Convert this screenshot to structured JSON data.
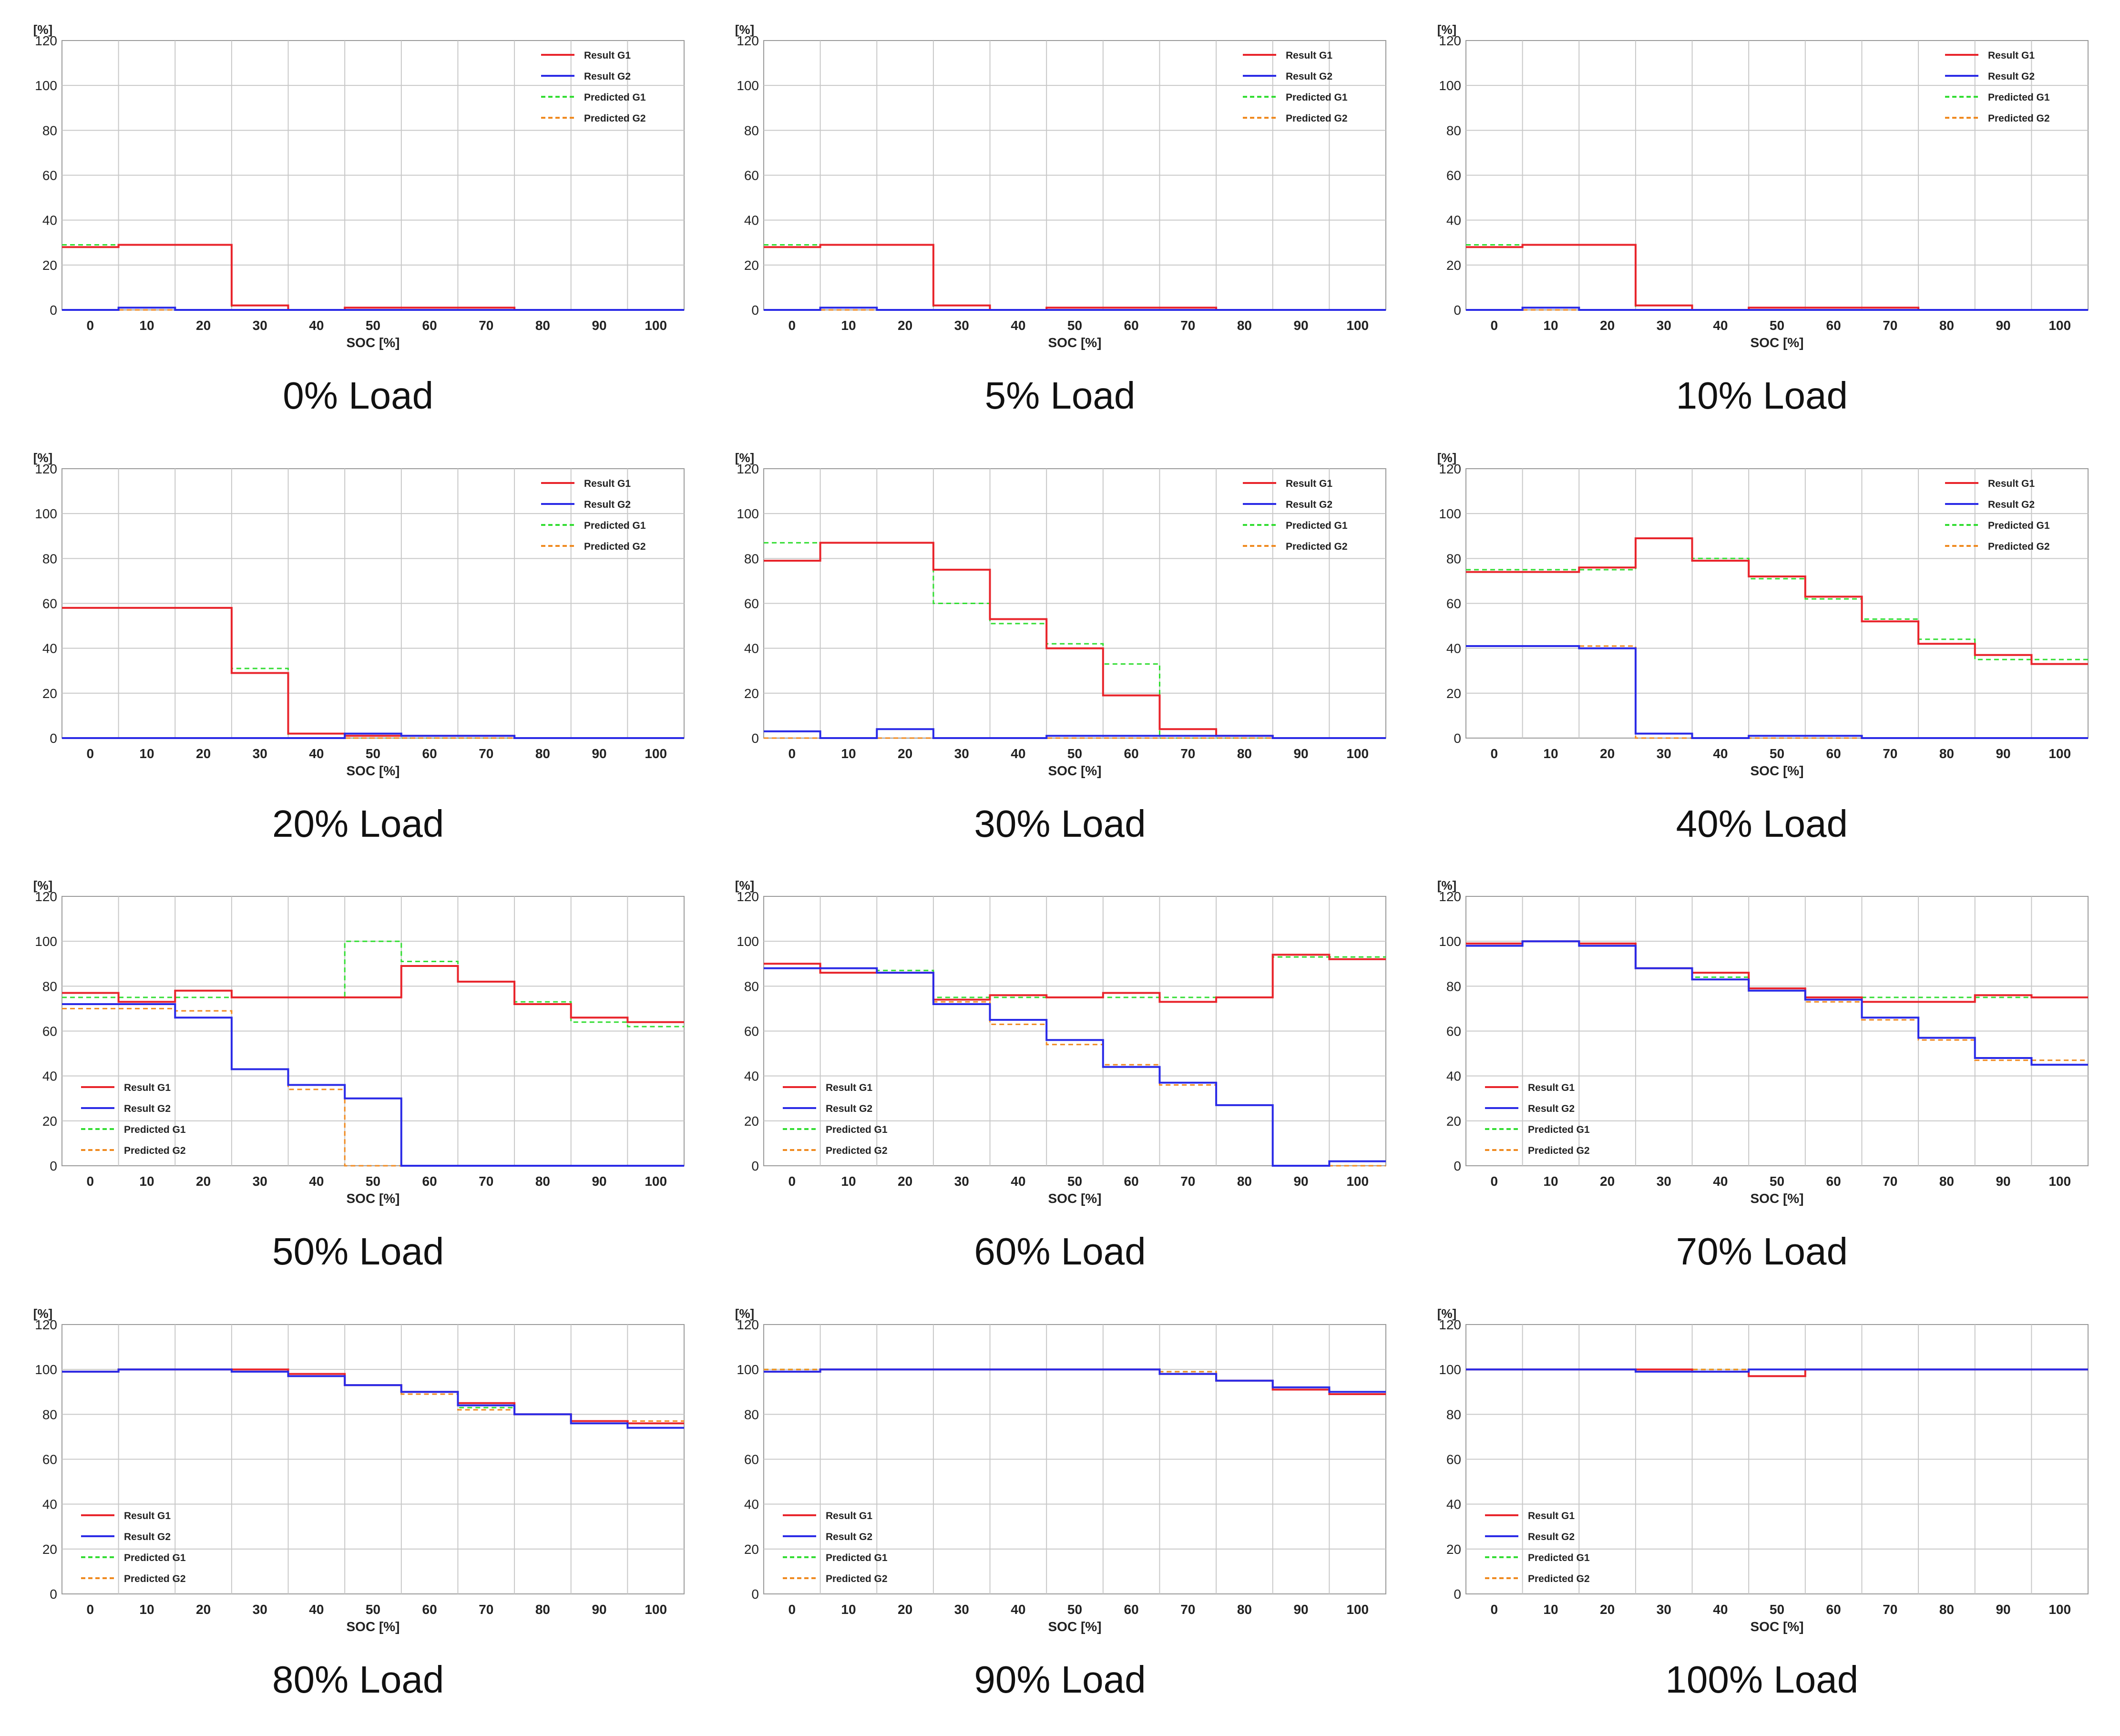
{
  "chart_data": [
    {
      "type": "line",
      "title": "0% Load",
      "xlabel": "SOC [%]",
      "ylabel": "[%]",
      "xlim": [
        -5,
        105
      ],
      "ylim": [
        0,
        120
      ],
      "xticks": [
        0,
        10,
        20,
        30,
        40,
        50,
        60,
        70,
        80,
        90,
        100
      ],
      "yticks": [
        0,
        20,
        40,
        60,
        80,
        100,
        120
      ],
      "legend_position": "top-right",
      "series": [
        {
          "name": "Result G1",
          "values": [
            28,
            29,
            29,
            2,
            0,
            1,
            1,
            1,
            0,
            0,
            0
          ]
        },
        {
          "name": "Result G2",
          "values": [
            0,
            1,
            0,
            0,
            0,
            0,
            0,
            0,
            0,
            0,
            0
          ]
        },
        {
          "name": "Predicted G1",
          "values": [
            29,
            29,
            29,
            0,
            0,
            0,
            0,
            0,
            0,
            0,
            0
          ]
        },
        {
          "name": "Predicted G2",
          "values": [
            0,
            0,
            0,
            0,
            0,
            0,
            0,
            0,
            0,
            0,
            0
          ]
        }
      ]
    },
    {
      "type": "line",
      "title": "5% Load",
      "xlabel": "SOC [%]",
      "ylabel": "[%]",
      "xlim": [
        -5,
        105
      ],
      "ylim": [
        0,
        120
      ],
      "xticks": [
        0,
        10,
        20,
        30,
        40,
        50,
        60,
        70,
        80,
        90,
        100
      ],
      "yticks": [
        0,
        20,
        40,
        60,
        80,
        100,
        120
      ],
      "legend_position": "top-right",
      "series": [
        {
          "name": "Result G1",
          "values": [
            28,
            29,
            29,
            2,
            0,
            1,
            1,
            1,
            0,
            0,
            0
          ]
        },
        {
          "name": "Result G2",
          "values": [
            0,
            1,
            0,
            0,
            0,
            0,
            0,
            0,
            0,
            0,
            0
          ]
        },
        {
          "name": "Predicted G1",
          "values": [
            29,
            29,
            29,
            0,
            0,
            0,
            0,
            0,
            0,
            0,
            0
          ]
        },
        {
          "name": "Predicted G2",
          "values": [
            0,
            0,
            0,
            0,
            0,
            0,
            0,
            0,
            0,
            0,
            0
          ]
        }
      ]
    },
    {
      "type": "line",
      "title": "10% Load",
      "xlabel": "SOC [%]",
      "ylabel": "[%]",
      "xlim": [
        -5,
        105
      ],
      "ylim": [
        0,
        120
      ],
      "xticks": [
        0,
        10,
        20,
        30,
        40,
        50,
        60,
        70,
        80,
        90,
        100
      ],
      "yticks": [
        0,
        20,
        40,
        60,
        80,
        100,
        120
      ],
      "legend_position": "top-right",
      "series": [
        {
          "name": "Result G1",
          "values": [
            28,
            29,
            29,
            2,
            0,
            1,
            1,
            1,
            0,
            0,
            0
          ]
        },
        {
          "name": "Result G2",
          "values": [
            0,
            1,
            0,
            0,
            0,
            0,
            0,
            0,
            0,
            0,
            0
          ]
        },
        {
          "name": "Predicted G1",
          "values": [
            29,
            29,
            29,
            0,
            0,
            0,
            0,
            0,
            0,
            0,
            0
          ]
        },
        {
          "name": "Predicted G2",
          "values": [
            0,
            0,
            0,
            0,
            0,
            0,
            0,
            0,
            0,
            0,
            0
          ]
        }
      ]
    },
    {
      "type": "line",
      "title": "20% Load",
      "xlabel": "SOC [%]",
      "ylabel": "[%]",
      "xlim": [
        -5,
        105
      ],
      "ylim": [
        0,
        120
      ],
      "xticks": [
        0,
        10,
        20,
        30,
        40,
        50,
        60,
        70,
        80,
        90,
        100
      ],
      "yticks": [
        0,
        20,
        40,
        60,
        80,
        100,
        120
      ],
      "legend_position": "top-right",
      "series": [
        {
          "name": "Result G1",
          "values": [
            58,
            58,
            58,
            29,
            2,
            1,
            1,
            1,
            0,
            0,
            0
          ]
        },
        {
          "name": "Result G2",
          "values": [
            0,
            0,
            0,
            0,
            0,
            2,
            1,
            1,
            0,
            0,
            0
          ]
        },
        {
          "name": "Predicted G1",
          "values": [
            58,
            58,
            58,
            31,
            0,
            0,
            0,
            0,
            0,
            0,
            0
          ]
        },
        {
          "name": "Predicted G2",
          "values": [
            0,
            0,
            0,
            0,
            0,
            0,
            0,
            0,
            0,
            0,
            0
          ]
        }
      ]
    },
    {
      "type": "line",
      "title": "30% Load",
      "xlabel": "SOC [%]",
      "ylabel": "[%]",
      "xlim": [
        -5,
        105
      ],
      "ylim": [
        0,
        120
      ],
      "xticks": [
        0,
        10,
        20,
        30,
        40,
        50,
        60,
        70,
        80,
        90,
        100
      ],
      "yticks": [
        0,
        20,
        40,
        60,
        80,
        100,
        120
      ],
      "legend_position": "top-right",
      "series": [
        {
          "name": "Result G1",
          "values": [
            79,
            87,
            87,
            75,
            53,
            40,
            19,
            4,
            1,
            0,
            0
          ]
        },
        {
          "name": "Result G2",
          "values": [
            3,
            0,
            4,
            0,
            0,
            1,
            1,
            1,
            1,
            0,
            0
          ]
        },
        {
          "name": "Predicted G1",
          "values": [
            87,
            87,
            87,
            60,
            51,
            42,
            33,
            0,
            0,
            0,
            0
          ]
        },
        {
          "name": "Predicted G2",
          "values": [
            0,
            0,
            0,
            0,
            0,
            0,
            0,
            0,
            0,
            0,
            0
          ]
        }
      ]
    },
    {
      "type": "line",
      "title": "40% Load",
      "xlabel": "SOC [%]",
      "ylabel": "[%]",
      "xlim": [
        -5,
        105
      ],
      "ylim": [
        0,
        120
      ],
      "xticks": [
        0,
        10,
        20,
        30,
        40,
        50,
        60,
        70,
        80,
        90,
        100
      ],
      "yticks": [
        0,
        20,
        40,
        60,
        80,
        100,
        120
      ],
      "legend_position": "top-right",
      "series": [
        {
          "name": "Result G1",
          "values": [
            74,
            74,
            76,
            89,
            79,
            72,
            63,
            52,
            42,
            37,
            33
          ]
        },
        {
          "name": "Result G2",
          "values": [
            41,
            41,
            40,
            2,
            0,
            1,
            1,
            0,
            0,
            0,
            0
          ]
        },
        {
          "name": "Predicted G1",
          "values": [
            75,
            75,
            75,
            89,
            80,
            71,
            62,
            53,
            44,
            35,
            35
          ]
        },
        {
          "name": "Predicted G2",
          "values": [
            41,
            41,
            41,
            0,
            0,
            0,
            0,
            0,
            0,
            0,
            0
          ]
        }
      ]
    },
    {
      "type": "line",
      "title": "50% Load",
      "xlabel": "SOC [%]",
      "ylabel": "[%]",
      "xlim": [
        -5,
        105
      ],
      "ylim": [
        0,
        120
      ],
      "xticks": [
        0,
        10,
        20,
        30,
        40,
        50,
        60,
        70,
        80,
        90,
        100
      ],
      "yticks": [
        0,
        20,
        40,
        60,
        80,
        100,
        120
      ],
      "legend_position": "bottom-left",
      "series": [
        {
          "name": "Result G1",
          "values": [
            77,
            73,
            78,
            75,
            75,
            75,
            89,
            82,
            72,
            66,
            64
          ]
        },
        {
          "name": "Result G2",
          "values": [
            72,
            72,
            66,
            43,
            36,
            30,
            0,
            0,
            0,
            0,
            0
          ]
        },
        {
          "name": "Predicted G1",
          "values": [
            75,
            75,
            75,
            75,
            75,
            100,
            91,
            82,
            73,
            64,
            62
          ]
        },
        {
          "name": "Predicted G2",
          "values": [
            70,
            70,
            69,
            43,
            34,
            0,
            0,
            0,
            0,
            0,
            0
          ]
        }
      ]
    },
    {
      "type": "line",
      "title": "60% Load",
      "xlabel": "SOC [%]",
      "ylabel": "[%]",
      "xlim": [
        -5,
        105
      ],
      "ylim": [
        0,
        120
      ],
      "xticks": [
        0,
        10,
        20,
        30,
        40,
        50,
        60,
        70,
        80,
        90,
        100
      ],
      "yticks": [
        0,
        20,
        40,
        60,
        80,
        100,
        120
      ],
      "legend_position": "bottom-left",
      "series": [
        {
          "name": "Result G1",
          "values": [
            90,
            86,
            86,
            74,
            76,
            75,
            77,
            73,
            75,
            94,
            92
          ]
        },
        {
          "name": "Result G2",
          "values": [
            88,
            88,
            86,
            72,
            65,
            56,
            44,
            37,
            27,
            0,
            2
          ]
        },
        {
          "name": "Predicted G1",
          "values": [
            88,
            88,
            87,
            75,
            75,
            75,
            75,
            75,
            75,
            93,
            93
          ]
        },
        {
          "name": "Predicted G2",
          "values": [
            88,
            88,
            86,
            73,
            63,
            54,
            45,
            36,
            27,
            0,
            0
          ]
        }
      ]
    },
    {
      "type": "line",
      "title": "70% Load",
      "xlabel": "SOC [%]",
      "ylabel": "[%]",
      "xlim": [
        -5,
        105
      ],
      "ylim": [
        0,
        120
      ],
      "xticks": [
        0,
        10,
        20,
        30,
        40,
        50,
        60,
        70,
        80,
        90,
        100
      ],
      "yticks": [
        0,
        20,
        40,
        60,
        80,
        100,
        120
      ],
      "legend_position": "bottom-left",
      "series": [
        {
          "name": "Result G1",
          "values": [
            99,
            100,
            99,
            88,
            86,
            79,
            75,
            73,
            73,
            76,
            75
          ]
        },
        {
          "name": "Result G2",
          "values": [
            98,
            100,
            98,
            88,
            83,
            78,
            74,
            66,
            57,
            48,
            45
          ]
        },
        {
          "name": "Predicted G1",
          "values": [
            99,
            100,
            99,
            88,
            84,
            78,
            75,
            75,
            75,
            75,
            75
          ]
        },
        {
          "name": "Predicted G2",
          "values": [
            98,
            100,
            98,
            88,
            83,
            78,
            73,
            65,
            56,
            47,
            47
          ]
        }
      ]
    },
    {
      "type": "line",
      "title": "80% Load",
      "xlabel": "SOC [%]",
      "ylabel": "[%]",
      "xlim": [
        -5,
        105
      ],
      "ylim": [
        0,
        120
      ],
      "xticks": [
        0,
        10,
        20,
        30,
        40,
        50,
        60,
        70,
        80,
        90,
        100
      ],
      "yticks": [
        0,
        20,
        40,
        60,
        80,
        100,
        120
      ],
      "legend_position": "bottom-left",
      "series": [
        {
          "name": "Result G1",
          "values": [
            99,
            100,
            100,
            100,
            98,
            93,
            90,
            85,
            80,
            77,
            76
          ]
        },
        {
          "name": "Result G2",
          "values": [
            99,
            100,
            100,
            99,
            97,
            93,
            90,
            84,
            80,
            76,
            74
          ]
        },
        {
          "name": "Predicted G1",
          "values": [
            99,
            100,
            100,
            99,
            97,
            93,
            89,
            83,
            80,
            77,
            77
          ]
        },
        {
          "name": "Predicted G2",
          "values": [
            99,
            100,
            100,
            99,
            97,
            93,
            89,
            82,
            80,
            77,
            77
          ]
        }
      ]
    },
    {
      "type": "line",
      "title": "90% Load",
      "xlabel": "SOC [%]",
      "ylabel": "[%]",
      "xlim": [
        -5,
        105
      ],
      "ylim": [
        0,
        120
      ],
      "xticks": [
        0,
        10,
        20,
        30,
        40,
        50,
        60,
        70,
        80,
        90,
        100
      ],
      "yticks": [
        0,
        20,
        40,
        60,
        80,
        100,
        120
      ],
      "legend_position": "bottom-left",
      "series": [
        {
          "name": "Result G1",
          "values": [
            99,
            100,
            100,
            100,
            100,
            100,
            100,
            98,
            95,
            91,
            89
          ]
        },
        {
          "name": "Result G2",
          "values": [
            99,
            100,
            100,
            100,
            100,
            100,
            100,
            98,
            95,
            92,
            90
          ]
        },
        {
          "name": "Predicted G1",
          "values": [
            100,
            100,
            100,
            100,
            100,
            100,
            100,
            99,
            95,
            92,
            90
          ]
        },
        {
          "name": "Predicted G2",
          "values": [
            100,
            100,
            100,
            100,
            100,
            100,
            100,
            99,
            95,
            92,
            90
          ]
        }
      ]
    },
    {
      "type": "line",
      "title": "100% Load",
      "xlabel": "SOC [%]",
      "ylabel": "[%]",
      "xlim": [
        -5,
        105
      ],
      "ylim": [
        0,
        120
      ],
      "xticks": [
        0,
        10,
        20,
        30,
        40,
        50,
        60,
        70,
        80,
        90,
        100
      ],
      "yticks": [
        0,
        20,
        40,
        60,
        80,
        100,
        120
      ],
      "legend_position": "bottom-left",
      "series": [
        {
          "name": "Result G1",
          "values": [
            100,
            100,
            100,
            100,
            99,
            97,
            100,
            100,
            100,
            100,
            100
          ]
        },
        {
          "name": "Result G2",
          "values": [
            100,
            100,
            100,
            99,
            99,
            100,
            100,
            100,
            100,
            100,
            100
          ]
        },
        {
          "name": "Predicted G1",
          "values": [
            100,
            100,
            100,
            100,
            100,
            100,
            100,
            100,
            100,
            100,
            100
          ]
        },
        {
          "name": "Predicted G2",
          "values": [
            100,
            100,
            100,
            100,
            100,
            100,
            100,
            100,
            100,
            100,
            100
          ]
        }
      ]
    }
  ],
  "series_colors": [
    "#e8242b",
    "#2a2ae6",
    "#33dd33",
    "#f08a20"
  ],
  "series_dashed": [
    false,
    false,
    true,
    true
  ]
}
